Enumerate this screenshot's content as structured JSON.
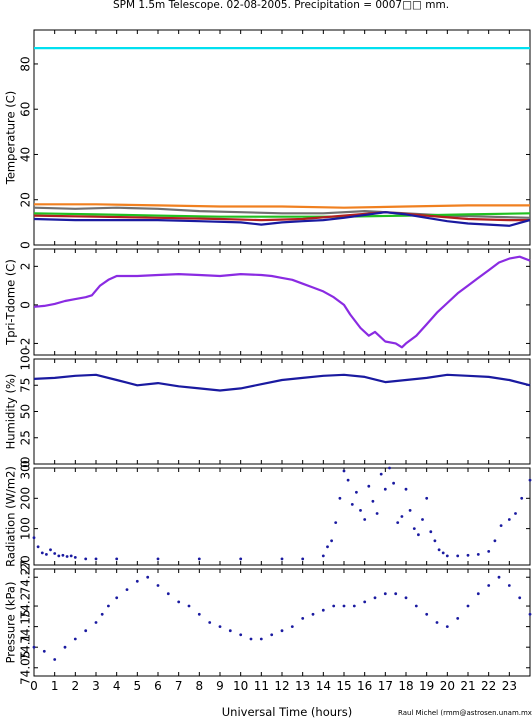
{
  "title": "SPM 1.5m Telescope. 02-08-2005. Precipitation = 0007□□ mm.",
  "xlabel": "Universal Time (hours)",
  "credit": "Raul Michel (rmm@astrosen.unam.mx)",
  "chart_data": [
    {
      "type": "line",
      "ylabel": "Temperature (C)",
      "ylim": [
        0,
        95
      ],
      "xlim": [
        0,
        24
      ],
      "yticks": [
        "0",
        "20",
        "40",
        "60",
        "80"
      ],
      "series": [
        {
          "color": "#00e0f0",
          "x": [
            0,
            24
          ],
          "y": [
            87,
            87
          ]
        },
        {
          "color": "#f08020",
          "x": [
            0,
            3,
            6,
            9,
            12,
            15,
            18,
            21,
            24
          ],
          "y": [
            18,
            18,
            17.5,
            17,
            17,
            16.5,
            17,
            17.5,
            17.5
          ]
        },
        {
          "color": "#707070",
          "x": [
            0,
            2,
            4,
            6,
            8,
            10,
            12,
            14,
            16,
            18,
            20,
            22,
            24
          ],
          "y": [
            16.5,
            16,
            16.5,
            16,
            15,
            14.5,
            14,
            14,
            15,
            14,
            13,
            12.5,
            12
          ]
        },
        {
          "color": "#20c020",
          "x": [
            0,
            3,
            6,
            9,
            12,
            15,
            18,
            21,
            24
          ],
          "y": [
            14,
            13.5,
            13,
            12.5,
            12.5,
            12.5,
            13,
            13.5,
            14
          ]
        },
        {
          "color": "#b02020",
          "x": [
            0,
            3,
            6,
            9,
            11,
            13,
            15,
            17,
            19,
            21,
            23,
            24
          ],
          "y": [
            13,
            12.5,
            12,
            11.5,
            11,
            11.5,
            13,
            14.5,
            13,
            11.5,
            11,
            11
          ]
        },
        {
          "color": "#1a1aa0",
          "x": [
            0,
            2,
            4,
            6,
            8,
            10,
            11,
            12,
            13,
            14,
            15,
            17,
            18,
            19,
            20,
            21,
            22,
            23,
            24
          ],
          "y": [
            11.5,
            11,
            11,
            11,
            10.5,
            10,
            9,
            10,
            10.5,
            11,
            12,
            14.5,
            13.5,
            12,
            10.5,
            9.5,
            9,
            8.5,
            11
          ]
        }
      ]
    },
    {
      "type": "line",
      "ylabel": "Tpri-Tdome (C)",
      "ylim": [
        -2.6,
        2.9
      ],
      "xlim": [
        0,
        24
      ],
      "yticks": [
        "-2",
        "0",
        "2"
      ],
      "series": [
        {
          "color": "#8a2be2",
          "x": [
            0,
            0.5,
            1,
            1.5,
            2,
            2.5,
            2.8,
            3.2,
            3.6,
            4,
            5,
            6,
            7,
            8,
            9,
            10,
            11,
            11.5,
            12,
            12.5,
            13,
            13.5,
            14,
            14.5,
            15,
            15.3,
            15.8,
            16.2,
            16.5,
            17,
            17.5,
            17.8,
            18,
            18.5,
            19,
            19.5,
            20,
            20.5,
            21,
            21.5,
            22,
            22.5,
            23,
            23.5,
            24
          ],
          "y": [
            -0.1,
            -0.05,
            0.05,
            0.2,
            0.3,
            0.4,
            0.5,
            1.0,
            1.3,
            1.5,
            1.5,
            1.55,
            1.6,
            1.55,
            1.5,
            1.6,
            1.55,
            1.5,
            1.4,
            1.3,
            1.1,
            0.9,
            0.7,
            0.4,
            0.0,
            -0.5,
            -1.2,
            -1.6,
            -1.4,
            -1.9,
            -2.0,
            -2.2,
            -2.0,
            -1.6,
            -1.0,
            -0.4,
            0.1,
            0.6,
            1.0,
            1.4,
            1.8,
            2.2,
            2.4,
            2.5,
            2.3
          ]
        }
      ]
    },
    {
      "type": "line",
      "ylabel": "Humidity (%)",
      "ylim": [
        0,
        100
      ],
      "xlim": [
        0,
        24
      ],
      "yticks": [
        "0",
        "25",
        "50",
        "75",
        "100"
      ],
      "series": [
        {
          "color": "#1a1aa0",
          "x": [
            0,
            1,
            2,
            3,
            4,
            5,
            6,
            7,
            8,
            9,
            10,
            11,
            12,
            13,
            14,
            15,
            16,
            17,
            18,
            19,
            20,
            21,
            22,
            23,
            24
          ],
          "y": [
            81,
            82,
            84,
            85,
            80,
            75,
            77,
            74,
            72,
            70,
            72,
            76,
            80,
            82,
            84,
            85,
            83,
            78,
            80,
            82,
            85,
            84,
            83,
            80,
            75
          ]
        }
      ]
    },
    {
      "type": "scatter",
      "ylabel": "Radiation (W/m2)",
      "ylim": [
        -20,
        300
      ],
      "xlim": [
        0,
        24
      ],
      "yticks": [
        "-20",
        "100",
        "200",
        "300"
      ],
      "series": [
        {
          "color": "#1a1aa0",
          "x": [
            0,
            0.2,
            0.4,
            0.6,
            0.8,
            1,
            1.2,
            1.4,
            1.6,
            1.8,
            2,
            2.5,
            3,
            4,
            6,
            8,
            10,
            12,
            13,
            14,
            14.2,
            14.4,
            14.6,
            14.8,
            15,
            15.2,
            15.4,
            15.6,
            15.8,
            16,
            16.2,
            16.4,
            16.6,
            16.8,
            17,
            17.2,
            17.4,
            17.6,
            17.8,
            18,
            18.2,
            18.4,
            18.6,
            18.8,
            19,
            19.2,
            19.4,
            19.6,
            19.8,
            20,
            20.5,
            21,
            21.5,
            22,
            22.3,
            22.6,
            23,
            23.3,
            23.6,
            24
          ],
          "y": [
            70,
            40,
            20,
            15,
            30,
            18,
            10,
            12,
            8,
            10,
            5,
            0,
            0,
            0,
            0,
            0,
            0,
            0,
            0,
            10,
            40,
            60,
            120,
            200,
            290,
            260,
            180,
            220,
            160,
            130,
            240,
            190,
            150,
            280,
            230,
            300,
            250,
            120,
            140,
            230,
            160,
            100,
            80,
            130,
            200,
            90,
            60,
            30,
            20,
            10,
            10,
            12,
            15,
            25,
            60,
            110,
            130,
            150,
            200,
            260
          ]
        }
      ]
    },
    {
      "type": "scatter",
      "ylabel": "Pressure (kPa)",
      "ylim": [
        74.03,
        74.29
      ],
      "xlim": [
        0,
        24
      ],
      "yticks": [
        "74.05",
        "74.1",
        "74.15",
        "74.2",
        "74.27"
      ],
      "series": [
        {
          "color": "#1a1aa0",
          "x": [
            0,
            0.5,
            1,
            1.5,
            2,
            2.5,
            3,
            3.3,
            3.6,
            4,
            4.5,
            5,
            5.5,
            6,
            6.5,
            7,
            7.5,
            8,
            8.5,
            9,
            9.5,
            10,
            10.5,
            11,
            11.5,
            12,
            12.5,
            13,
            13.5,
            14,
            14.5,
            15,
            15.5,
            16,
            16.5,
            17,
            17.5,
            18,
            18.5,
            19,
            19.5,
            20,
            20.5,
            21,
            21.5,
            22,
            22.5,
            23,
            23.5,
            24
          ],
          "y": [
            74.1,
            74.09,
            74.07,
            74.1,
            74.12,
            74.14,
            74.16,
            74.18,
            74.2,
            74.22,
            74.24,
            74.26,
            74.27,
            74.25,
            74.23,
            74.21,
            74.2,
            74.18,
            74.16,
            74.15,
            74.14,
            74.13,
            74.12,
            74.12,
            74.13,
            74.14,
            74.15,
            74.17,
            74.18,
            74.19,
            74.2,
            74.2,
            74.2,
            74.21,
            74.22,
            74.23,
            74.23,
            74.22,
            74.2,
            74.18,
            74.16,
            74.15,
            74.17,
            74.2,
            74.23,
            74.25,
            74.27,
            74.25,
            74.22,
            74.18
          ]
        }
      ]
    }
  ],
  "xticks": [
    "0",
    "1",
    "2",
    "3",
    "4",
    "5",
    "6",
    "7",
    "8",
    "9",
    "10",
    "11",
    "12",
    "13",
    "14",
    "15",
    "16",
    "17",
    "18",
    "19",
    "20",
    "21",
    "22",
    "23"
  ]
}
